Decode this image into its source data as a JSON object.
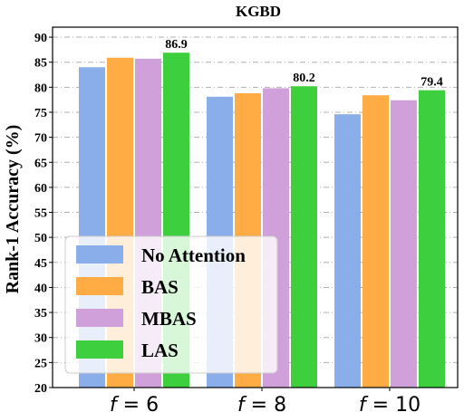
{
  "chart_data": {
    "type": "bar",
    "title": "KGBD",
    "ylabel": "Rank-1 Accuracy (%)",
    "xlabel": "",
    "categories": [
      {
        "var": "f",
        "rest": " = 6"
      },
      {
        "var": "f",
        "rest": " = 8"
      },
      {
        "var": "f",
        "rest": " = 10"
      }
    ],
    "ylim": [
      20,
      92
    ],
    "yticks": [
      20,
      25,
      30,
      35,
      40,
      45,
      50,
      55,
      60,
      65,
      70,
      75,
      80,
      85,
      90
    ],
    "grid": true,
    "legend_position": "lower-left",
    "series": [
      {
        "name": "No Attention",
        "color": "#8aaeea",
        "values": [
          84.0,
          78.1,
          74.6
        ]
      },
      {
        "name": "BAS",
        "color": "#ffac45",
        "values": [
          85.9,
          78.8,
          78.4
        ]
      },
      {
        "name": "MBAS",
        "color": "#cfa0da",
        "values": [
          85.7,
          79.8,
          77.4
        ]
      },
      {
        "name": "LAS",
        "color": "#3ecf3e",
        "values": [
          86.9,
          80.2,
          79.4
        ]
      }
    ],
    "data_labels": [
      {
        "series": 3,
        "category": 0,
        "text": "86.9"
      },
      {
        "series": 3,
        "category": 1,
        "text": "80.2"
      },
      {
        "series": 3,
        "category": 2,
        "text": "79.4"
      }
    ]
  }
}
